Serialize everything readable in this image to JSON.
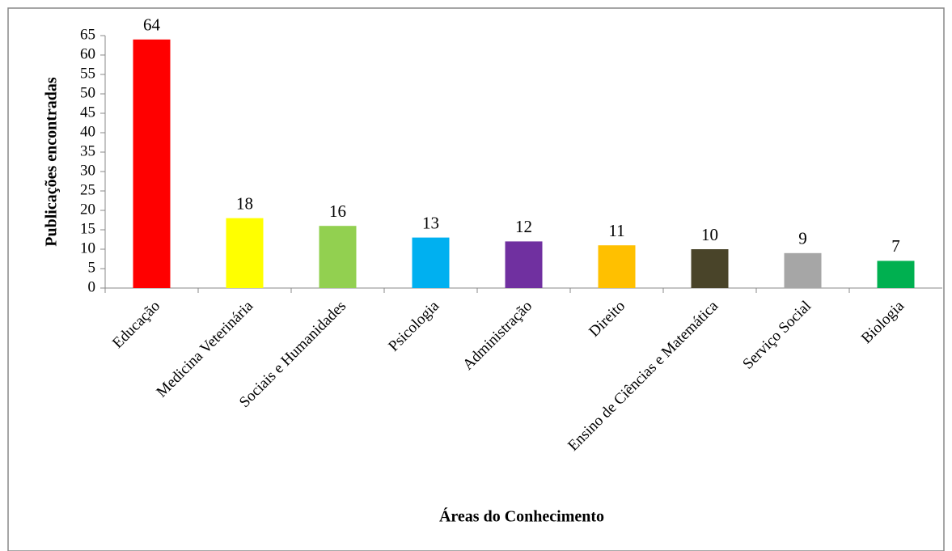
{
  "chart_data": {
    "type": "bar",
    "x_label": "Áreas do Conhecimento",
    "y_label": "Publicações encontradas",
    "categories": [
      "Educação",
      "Medicina Veterinária",
      "Sociais e Humanidades",
      "Psicologia",
      "Administração",
      "Direito",
      "Ensino de Ciências e Matemática",
      "Serviço Social",
      "Biologia"
    ],
    "values": [
      64,
      18,
      16,
      13,
      12,
      11,
      10,
      9,
      7
    ],
    "colors": [
      "#ff0000",
      "#ffff00",
      "#92d050",
      "#00b0f0",
      "#7030a0",
      "#ffc000",
      "#494429",
      "#a6a6a6",
      "#00b050"
    ],
    "ylim": [
      0,
      65
    ],
    "yticks": [
      0,
      5,
      10,
      15,
      20,
      25,
      30,
      35,
      40,
      45,
      50,
      55,
      60,
      65
    ],
    "grid": false
  }
}
